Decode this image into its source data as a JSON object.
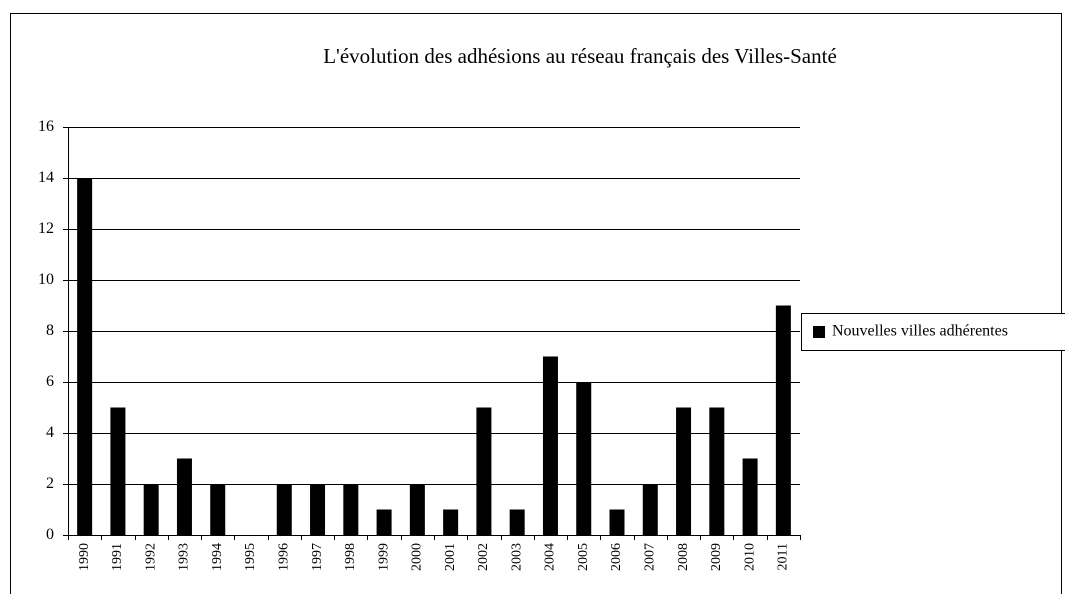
{
  "chart_data": {
    "type": "bar",
    "title": "L'évolution des adhésions au réseau français des Villes-Santé",
    "categories": [
      "1990",
      "1991",
      "1992",
      "1993",
      "1994",
      "1995",
      "1996",
      "1997",
      "1998",
      "1999",
      "2000",
      "2001",
      "2002",
      "2003",
      "2004",
      "2005",
      "2006",
      "2007",
      "2008",
      "2009",
      "2010",
      "2011"
    ],
    "series": [
      {
        "name": "Nouvelles villes adhérentes",
        "color": "#000000",
        "values": [
          14,
          5,
          2,
          3,
          2,
          0,
          2,
          2,
          2,
          1,
          2,
          1,
          5,
          1,
          7,
          6,
          1,
          2,
          5,
          5,
          3,
          9
        ]
      }
    ],
    "ylim": [
      0,
      16
    ],
    "yticks": [
      0,
      2,
      4,
      6,
      8,
      10,
      12,
      14,
      16
    ],
    "grid": true,
    "legend": "right"
  }
}
